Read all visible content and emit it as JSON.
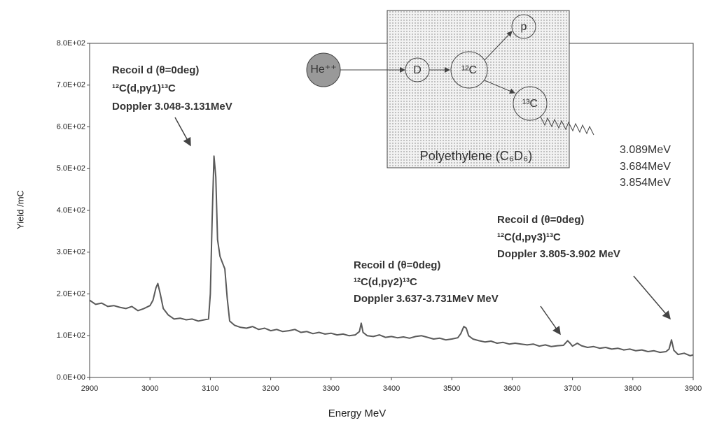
{
  "chart_data": {
    "type": "line",
    "x_label": "Energy MeV",
    "y_label": "Yield /mC",
    "xlim": [
      2900,
      3900
    ],
    "ylim": [
      0,
      800
    ],
    "xticks": [
      2900,
      3000,
      3100,
      3200,
      3300,
      3400,
      3500,
      3600,
      3700,
      3800,
      3900
    ],
    "yticks": [
      {
        "value": 0,
        "label": "0.0E+00"
      },
      {
        "value": 100,
        "label": "1.0E+02"
      },
      {
        "value": 200,
        "label": "2.0E+02"
      },
      {
        "value": 300,
        "label": "3.0E+02"
      },
      {
        "value": 400,
        "label": "4.0E+02"
      },
      {
        "value": 500,
        "label": "5.0E+02"
      },
      {
        "value": 600,
        "label": "6.0E+02"
      },
      {
        "value": 700,
        "label": "7.0E+02"
      },
      {
        "value": 800,
        "label": "8.0E+02"
      }
    ],
    "grid": false,
    "color": "#5a5a5a",
    "x": [
      2900,
      2910,
      2920,
      2930,
      2940,
      2950,
      2960,
      2970,
      2980,
      2990,
      3000,
      3005,
      3010,
      3013,
      3017,
      3022,
      3030,
      3040,
      3050,
      3060,
      3070,
      3080,
      3090,
      3097,
      3100,
      3103,
      3106,
      3109,
      3112,
      3116,
      3120,
      3124,
      3128,
      3132,
      3140,
      3150,
      3160,
      3170,
      3180,
      3190,
      3200,
      3210,
      3220,
      3230,
      3240,
      3250,
      3260,
      3270,
      3280,
      3290,
      3300,
      3310,
      3320,
      3330,
      3340,
      3347,
      3350,
      3353,
      3360,
      3370,
      3380,
      3390,
      3400,
      3410,
      3420,
      3430,
      3440,
      3450,
      3460,
      3470,
      3480,
      3490,
      3500,
      3510,
      3515,
      3520,
      3524,
      3528,
      3535,
      3545,
      3555,
      3565,
      3575,
      3585,
      3595,
      3605,
      3615,
      3625,
      3635,
      3645,
      3655,
      3665,
      3675,
      3685,
      3692,
      3696,
      3700,
      3708,
      3715,
      3725,
      3735,
      3745,
      3755,
      3765,
      3775,
      3785,
      3795,
      3805,
      3815,
      3825,
      3835,
      3845,
      3855,
      3860,
      3864,
      3868,
      3875,
      3885,
      3895,
      3900
    ],
    "values": [
      185,
      175,
      178,
      170,
      172,
      168,
      165,
      170,
      160,
      165,
      172,
      185,
      215,
      225,
      200,
      165,
      150,
      140,
      142,
      138,
      140,
      135,
      138,
      140,
      200,
      380,
      530,
      480,
      330,
      290,
      275,
      260,
      190,
      135,
      125,
      120,
      118,
      122,
      115,
      118,
      112,
      115,
      110,
      112,
      115,
      108,
      110,
      105,
      108,
      104,
      106,
      102,
      104,
      100,
      102,
      110,
      130,
      108,
      100,
      98,
      102,
      96,
      98,
      95,
      97,
      94,
      98,
      100,
      96,
      92,
      94,
      90,
      92,
      95,
      105,
      122,
      118,
      100,
      92,
      88,
      85,
      87,
      82,
      84,
      80,
      82,
      80,
      78,
      80,
      75,
      78,
      74,
      76,
      77,
      88,
      82,
      75,
      82,
      76,
      72,
      74,
      70,
      72,
      68,
      70,
      66,
      68,
      64,
      66,
      62,
      64,
      60,
      62,
      68,
      90,
      65,
      55,
      58,
      52,
      54
    ],
    "annotations": [
      [
        "Recoil d (θ=0deg)",
        "¹²C(d,pγ1)¹³C",
        "Doppler 3.048-3.131MeV"
      ],
      [
        "Recoil d (θ=0deg)",
        "¹²C(d,pγ2)¹³C",
        "Doppler 3.637-3.731MeV MeV"
      ],
      [
        "Recoil d (θ=0deg)",
        "¹²C(d,pγ3)¹³C",
        "Doppler 3.805-3.902 MeV"
      ]
    ],
    "inset": {
      "particles": [
        "He⁺⁺",
        "D",
        "¹²C",
        "p",
        "¹³C"
      ],
      "target": "Polyethylene (C₆D₆)",
      "gamma_energies": [
        "3.089MeV",
        "3.684MeV",
        "3.854MeV"
      ]
    }
  }
}
